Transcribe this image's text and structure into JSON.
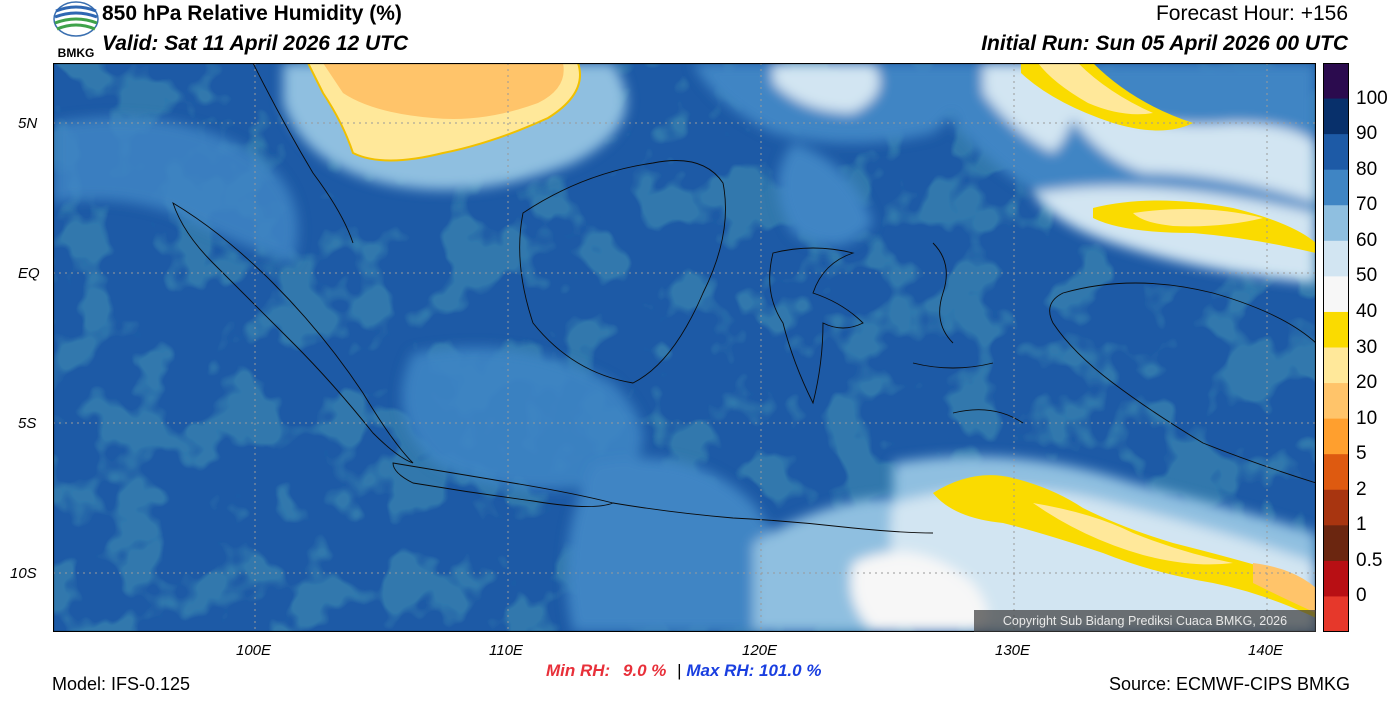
{
  "header": {
    "title": "850 hPa Relative Humidity (%)",
    "valid": "Valid: Sat 11 April 2026 12 UTC",
    "forecast_hour": "Forecast Hour: +156",
    "initial_run": "Initial Run: Sun 05 April 2026 00 UTC",
    "logo_text": "BMKG"
  },
  "map": {
    "lat_ticks": [
      "5N",
      "EQ",
      "5S",
      "10S"
    ],
    "lon_ticks": [
      "100E",
      "110E",
      "120E",
      "130E",
      "140E"
    ],
    "copyright": "Copyright Sub Bidang Prediksi Cuaca BMKG, 2026"
  },
  "colorbar": {
    "levels": [
      "100",
      "90",
      "80",
      "70",
      "60",
      "50",
      "40",
      "30",
      "20",
      "10",
      "5",
      "2",
      "1",
      "0.5",
      "0"
    ],
    "colors": [
      "#2b0b4e",
      "#08306b",
      "#1d5aa6",
      "#3f85c4",
      "#8fbfe0",
      "#d2e5f2",
      "#f7f7f7",
      "#fadb00",
      "#ffe89a",
      "#ffc46a",
      "#ff9f2e",
      "#de5a10",
      "#a83510",
      "#6b2610",
      "#b80f14",
      "#e6382b"
    ]
  },
  "footer": {
    "model": "Model: IFS-0.125",
    "min_rh_label": "Min RH:",
    "min_rh_value": "9.0 %",
    "separator": "|",
    "max_rh": "Max RH: 101.0 %",
    "source": "Source: ECMWF-CIPS BMKG"
  },
  "colors": {
    "min_rh": "#e8303a",
    "max_rh": "#1a3fe0"
  }
}
